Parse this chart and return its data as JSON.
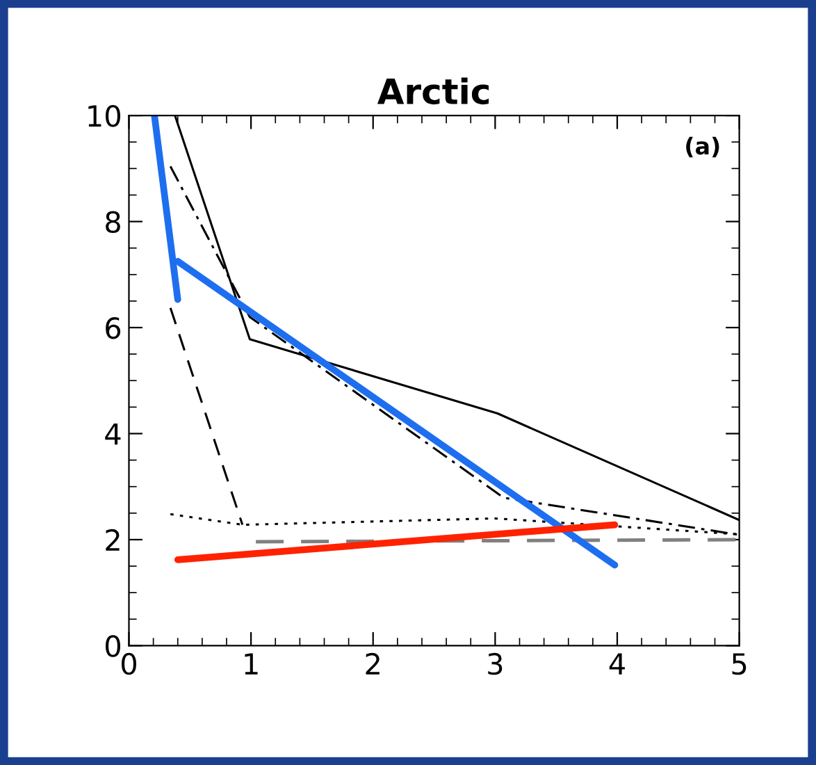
{
  "chart_data": {
    "type": "line",
    "title": "Arctic",
    "annotations": [
      "(a)"
    ],
    "xlim": [
      0,
      5
    ],
    "ylim": [
      0,
      10
    ],
    "xticks": [
      0,
      1,
      2,
      3,
      4,
      5
    ],
    "yticks": [
      0,
      2,
      4,
      6,
      8,
      10
    ],
    "grid": false,
    "legend": false,
    "marker": "none",
    "series": [
      {
        "color": "#000000",
        "line_style": "solid",
        "x": [
          0.38,
          0.99,
          3.02,
          5.0
        ],
        "values": [
          9.98,
          5.78,
          4.38,
          2.37
        ]
      },
      {
        "color": "#000000",
        "line_style": "dashdot",
        "x": [
          0.34,
          0.99,
          3.07,
          5.0
        ],
        "values": [
          9.04,
          6.2,
          2.79,
          2.09
        ]
      },
      {
        "color": "#000000",
        "line_style": "dashed",
        "x": [
          0.34,
          0.93
        ],
        "values": [
          6.37,
          2.28
        ]
      },
      {
        "color": "#000000",
        "line_style": "dotted",
        "x": [
          0.34,
          0.93,
          3.0,
          5.0
        ],
        "values": [
          2.48,
          2.28,
          2.4,
          2.1
        ]
      },
      {
        "color": "#808080",
        "line_style": "dashed",
        "x": [
          1.04,
          5.0
        ],
        "values": [
          1.96,
          2.0
        ]
      },
      {
        "color": "#1e6ef0",
        "line_style": "solid",
        "x": [
          0.21,
          0.4
        ],
        "values": [
          9.98,
          6.53
        ]
      },
      {
        "color": "#1e6ef0",
        "line_style": "solid",
        "x": [
          0.4,
          3.98
        ],
        "values": [
          7.25,
          1.52
        ]
      },
      {
        "color": "#ff2200",
        "line_style": "solid",
        "x": [
          0.4,
          3.98
        ],
        "values": [
          1.62,
          2.28
        ]
      }
    ]
  }
}
